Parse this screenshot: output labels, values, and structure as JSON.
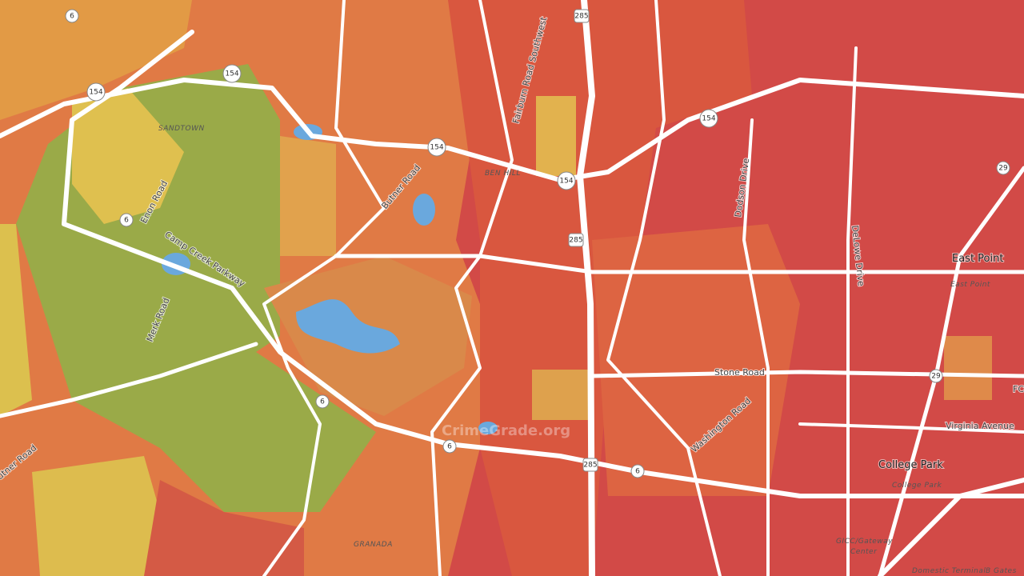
{
  "watermark": "CrimeGrade.org",
  "places": [
    "SANDTOWN",
    "BEN HILL",
    "East Point",
    "East Point",
    "College Park",
    "College Park",
    "GRANADA",
    "GICC/Gateway",
    "Center",
    "Domestic Terminal",
    "B Gates"
  ],
  "roads": [
    "Enon Road",
    "Camp Creek Parkway",
    "Merk Road",
    "Butner Road",
    "utner Road",
    "Fairburn Road Southwest",
    "Dodson Drive",
    "DeLowe Drive",
    "Stone Road",
    "Washington Road",
    "Virginia Avenue",
    "FC"
  ],
  "shields": [
    "6",
    "6",
    "6",
    "6",
    "6",
    "154",
    "154",
    "154",
    "154",
    "154",
    "285",
    "285",
    "285",
    "29",
    "29"
  ]
}
